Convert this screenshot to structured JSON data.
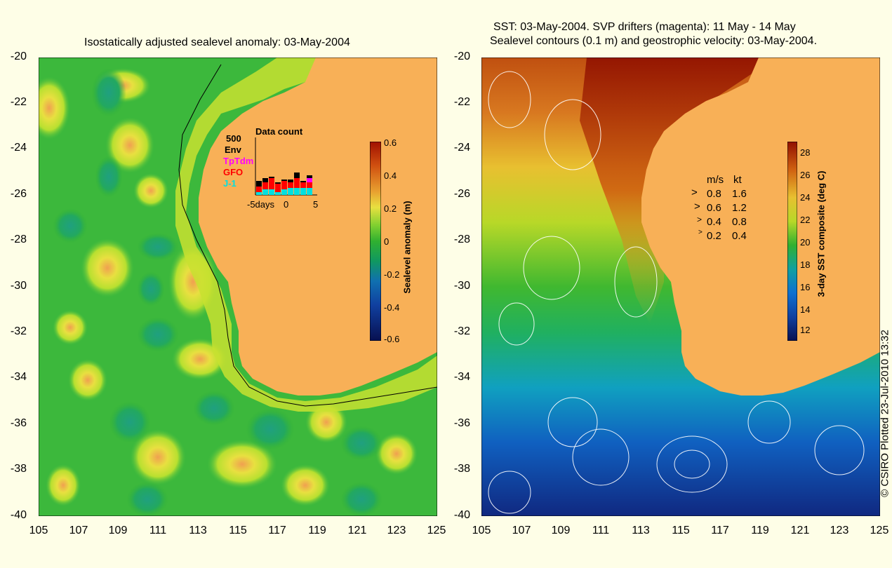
{
  "left_panel": {
    "title": "Isostatically adjusted sealevel anomaly: 03-May-2004",
    "y_ticks": [
      "-20",
      "-22",
      "-24",
      "-26",
      "-28",
      "-30",
      "-32",
      "-34",
      "-36",
      "-38",
      "-40"
    ],
    "x_ticks": [
      "105",
      "107",
      "109",
      "111",
      "113",
      "115",
      "117",
      "119",
      "121",
      "123",
      "125"
    ],
    "colorbar": {
      "label": "Sealevel anomaly (m)",
      "ticks": [
        "0.6",
        "0.4",
        "0.2",
        "0",
        "-0.2",
        "-0.4",
        "-0.6"
      ]
    },
    "data_count": {
      "title": "Data count",
      "max_label": "500",
      "series": [
        {
          "name": "Env",
          "color": "#000000"
        },
        {
          "name": "TpTdm",
          "color": "#ff00ff"
        },
        {
          "name": "GFO",
          "color": "#ff0000"
        },
        {
          "name": "J-1",
          "color": "#00e0e0"
        }
      ],
      "x_labels": [
        "-5days",
        "0",
        "5"
      ]
    }
  },
  "right_panel": {
    "title_line1": "SST: 03-May-2004. SVP drifters (magenta): 11 May - 14 May",
    "title_line2": "Sealevel contours (0.1 m) and geostrophic velocity: 03-May-2004.",
    "y_ticks": [
      "-20",
      "-22",
      "-24",
      "-26",
      "-28",
      "-30",
      "-32",
      "-34",
      "-36",
      "-38",
      "-40"
    ],
    "x_ticks": [
      "105",
      "107",
      "109",
      "111",
      "113",
      "115",
      "117",
      "119",
      "121",
      "123",
      "125"
    ],
    "colorbar": {
      "label": "3-day SST composite (deg C)",
      "ticks": [
        "28",
        "26",
        "24",
        "22",
        "20",
        "18",
        "16",
        "14",
        "12"
      ]
    },
    "velocity_legend": {
      "header_ms": "m/s",
      "header_kt": "kt",
      "rows": [
        {
          "ms": "0.8",
          "kt": "1.6"
        },
        {
          "ms": "0.6",
          "kt": "1.2"
        },
        {
          "ms": "0.4",
          "kt": "0.8"
        },
        {
          "ms": "0.2",
          "kt": "0.4"
        }
      ]
    }
  },
  "credit": "© CSIRO Plotted 23-Jul-2010 13:32",
  "colors": {
    "background": "#fefee7",
    "land": "#f8b057",
    "ocean_base": "#33b233"
  }
}
